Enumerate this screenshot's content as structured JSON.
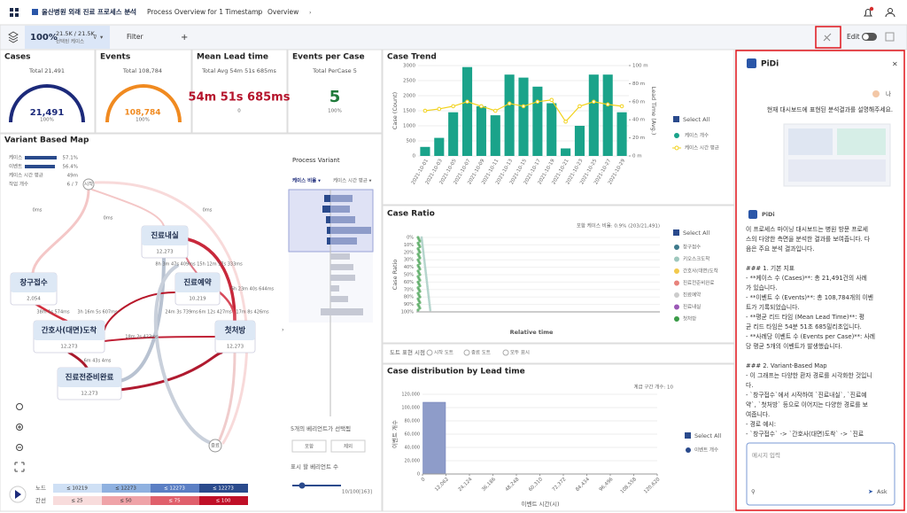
{
  "header": {
    "breadcrumb": [
      "울산병원 외래 진료 프로세스 분석",
      "Process Overview for 1 Timestamp",
      "Overview"
    ]
  },
  "toolbar": {
    "percent": "100%",
    "count": "21.5K / 21.5K",
    "count_caption": "선택된 케이스",
    "filter": "Filter",
    "edit": "Edit"
  },
  "kpis": [
    {
      "title": "Cases",
      "caption": "Total 21,491",
      "value": "21,491",
      "sub": "100%"
    },
    {
      "title": "Events",
      "caption": "Total 108,784",
      "value": "108,784",
      "sub": "100%"
    },
    {
      "title": "Mean Lead time",
      "caption": "Total Avg 54m 51s 685ms",
      "value": "54m 51s 685ms",
      "sub": "0"
    },
    {
      "title": "Events per Case",
      "caption": "Total PerCase 5",
      "value": "5",
      "sub": "100%"
    }
  ],
  "variant_map": {
    "title": "Variant Based Map",
    "summary": [
      [
        "케이스",
        "57.1%"
      ],
      [
        "이벤트",
        "56.4%"
      ],
      [
        "케이스 시간 평균",
        "49m"
      ],
      [
        "작업 개수",
        "6 / 7"
      ]
    ],
    "nodes": [
      {
        "label": "시작"
      },
      {
        "label": "창구접수",
        "count": "2,054"
      },
      {
        "label": "진료내실",
        "count": "12,273"
      },
      {
        "label": "진료예약",
        "count": "10,219"
      },
      {
        "label": "간호사(대면)도착",
        "count": "12,273"
      },
      {
        "label": "첫처방",
        "count": "12,273"
      },
      {
        "label": "진료전준비완료",
        "count": "12,273"
      },
      {
        "label": "종료"
      }
    ],
    "edge_labels": [
      "0ms",
      "0ms",
      "0ms",
      "8h 3m 47s 409ms",
      "15h 12m 17s 333ms",
      "6h 23m 40s 644ms",
      "24m 3s 739ms",
      "6m 12s 427ms",
      "17m 8s 426ms",
      "38m 1s 574ms",
      "3h 16m 5s 607ms",
      "18m 2s 423ms",
      "6m 43s 4ms"
    ],
    "legend": {
      "node_label": "노드",
      "node_bins": [
        "≤ 10219",
        "≤ 12273",
        "≤ 12273",
        "≤ 12273"
      ],
      "edge_label": "간선",
      "edge_bins": [
        "≤ 25",
        "≤ 50",
        "≤ 75",
        "≤ 100"
      ]
    }
  },
  "process_variant": {
    "title": "Process Variant",
    "sort1": "케이스 비율 ▾",
    "sort2": "케이스 시간 평균 ▾",
    "selected": "5개의 베리언트가 선택됨",
    "include": "포함",
    "exclude": "제외",
    "count_label": "표시 할 베리언트 수",
    "count_value": "10/100[163]"
  },
  "case_trend": {
    "title": "Case Trend",
    "y_label": "Case (Count)",
    "y2_label": "Lead Time (Avg.)",
    "select_all": "Select All",
    "categories": [
      "2021-10-01",
      "2021-10-03",
      "2021-10-05",
      "2021-10-07",
      "2021-10-09",
      "2021-10-11",
      "2021-10-13",
      "2021-10-15",
      "2021-10-17",
      "2021-10-19",
      "2021-10-21",
      "2021-10-23",
      "2021-10-25",
      "2021-10-27",
      "2021-10-29"
    ],
    "series": [
      {
        "name": "케이스 개수",
        "color": "#1aa38a",
        "values": [
          300,
          600,
          1450,
          2950,
          1650,
          1350,
          2700,
          2600,
          2300,
          1750,
          250,
          1000,
          2700,
          2700,
          1450
        ]
      },
      {
        "name": "케이스 시간 평균",
        "color": "#f2d21b",
        "axis": "y2",
        "values": [
          50,
          52,
          55,
          60,
          55,
          50,
          58,
          55,
          60,
          62,
          38,
          55,
          60,
          57,
          55
        ]
      }
    ],
    "ylim": [
      0,
      3000
    ],
    "yticks": [
      0,
      500,
      1000,
      1500,
      2000,
      2500,
      3000
    ],
    "y2lim": [
      0,
      100
    ],
    "y2ticks": [
      {
        "value": 0,
        "label": "0 m"
      },
      {
        "value": 20,
        "label": "20 m"
      },
      {
        "value": 40,
        "label": "40 m"
      },
      {
        "value": 60,
        "label": "60 m"
      },
      {
        "value": 80,
        "label": "80 m"
      },
      {
        "value": 100,
        "label": "100 m"
      }
    ]
  },
  "case_ratio": {
    "title": "Case Ratio",
    "caption": "포함 케이스 비율: 0.9% (203/21,491)",
    "y_label": "Case Ratio",
    "x_label": "Relative time",
    "select_all": "Select All",
    "legend": [
      {
        "name": "창구접수",
        "color": "#3e7a8c"
      },
      {
        "name": "키오스크도착",
        "color": "#9ec7bd"
      },
      {
        "name": "간호사(대면)도착",
        "color": "#f2c94c"
      },
      {
        "name": "진료전준비완료",
        "color": "#e8837c"
      },
      {
        "name": "진료예약",
        "color": "#cccccc"
      },
      {
        "name": "진료내실",
        "color": "#9b59b6"
      },
      {
        "name": "첫처방",
        "color": "#3a9b47"
      }
    ],
    "ylim": [
      0,
      100
    ],
    "yticks": [
      {
        "value": 0,
        "label": "0%"
      },
      {
        "value": 10,
        "label": "10%"
      },
      {
        "value": 20,
        "label": "20%"
      },
      {
        "value": 30,
        "label": "30%"
      },
      {
        "value": 40,
        "label": "40%"
      },
      {
        "value": 50,
        "label": "50%"
      },
      {
        "value": 60,
        "label": "60%"
      },
      {
        "value": 70,
        "label": "70%"
      },
      {
        "value": 80,
        "label": "80%"
      },
      {
        "value": 90,
        "label": "90%"
      },
      {
        "value": 100,
        "label": "100%"
      }
    ]
  },
  "dot_toggle": {
    "label": "도트 표현 시점",
    "options": [
      "시작 도트",
      "종료 도트",
      "모두 표시"
    ]
  },
  "lead_time_dist": {
    "type": "histogram",
    "title": "Case distribution by Lead time",
    "caption": "계급 구간 개수: 10",
    "y_label": "이벤트 개수",
    "x_label": "이벤트 시간(시)",
    "select_all": "Select All",
    "series_name": "이벤트 개수",
    "color": "#8e9cc9",
    "bins": [
      0,
      12062,
      24124,
      36186,
      48248,
      60310,
      72372,
      84434,
      96496,
      108558,
      120620
    ],
    "counts": [
      108000,
      300,
      50,
      0,
      0,
      0,
      0,
      0,
      0,
      0
    ],
    "xlim": [
      0,
      120620
    ],
    "xticks": [
      0,
      {
        "value": 12062,
        "label": "12,062"
      },
      {
        "value": 24124,
        "label": "24,124"
      },
      {
        "value": 36186,
        "label": "36,186"
      },
      {
        "value": 48248,
        "label": "48,248"
      },
      {
        "value": 60310,
        "label": "60,310"
      },
      {
        "value": 72372,
        "label": "72,372"
      },
      {
        "value": 84434,
        "label": "84,434"
      },
      {
        "value": 96496,
        "label": "96,496"
      },
      {
        "value": 108558,
        "label": "108,558"
      },
      {
        "value": 120620,
        "label": "120,620"
      }
    ],
    "ylim": [
      0,
      120000
    ],
    "yticks": [
      0,
      {
        "value": 20000,
        "label": "20,000"
      },
      {
        "value": 40000,
        "label": "40,000"
      },
      {
        "value": 60000,
        "label": "60,000"
      },
      {
        "value": 80000,
        "label": "80,000"
      },
      {
        "value": 100000,
        "label": "100,000"
      },
      {
        "value": 120000,
        "label": "120,000"
      }
    ]
  },
  "chat": {
    "title": "PiDi",
    "user": "나",
    "question": "현재 대시보드에 표현된 분석결과를 설명해주세요.",
    "bot": "PiDi",
    "response": [
      [
        "이 프로세스 마이닝 대시보드는 병원 방문 프로세",
        "스의 다양한 측면을 분석한 결과를 보여줍니다. 다",
        "음은 주요 분석 결과입니다."
      ],
      [
        "### 1. 기본 지표",
        "- **케이스 수 (Cases)**: 총 21,491건의 사례",
        "가 있습니다.",
        "- **이벤트 수 (Events)**: 총 108,784개의 이벤",
        "트가 기록되었습니다.",
        "- **평균 리드 타임 (Mean Lead Time)**: 평",
        "균 리드 타임은 54분 51초 685밀리초입니다.",
        "- **사례당 이벤트 수 (Events per Case)**: 사례",
        "당 평균 5개의 이벤트가 발생했습니다."
      ],
      [
        "### 2. Variant-Based Map",
        "- 이 그래프는 다양한 환자 경로를 시각화한 것입니",
        "다.",
        "- `창구접수`에서 시작하여 `진료내실`, `진료예",
        "약`, `첫처방` 등으로 이어지는 다양한 경로를 보",
        "여줍니다.",
        "- 경로 예시:",
        "  - `창구접수` -> `간호사(대면)도착` -> `진료",
        "전 준비완료` -> `진료내실` -> `진료예약` ->",
        "`첫처방`"
      ]
    ],
    "placeholder": "메시지 입력",
    "ask": "Ask"
  }
}
